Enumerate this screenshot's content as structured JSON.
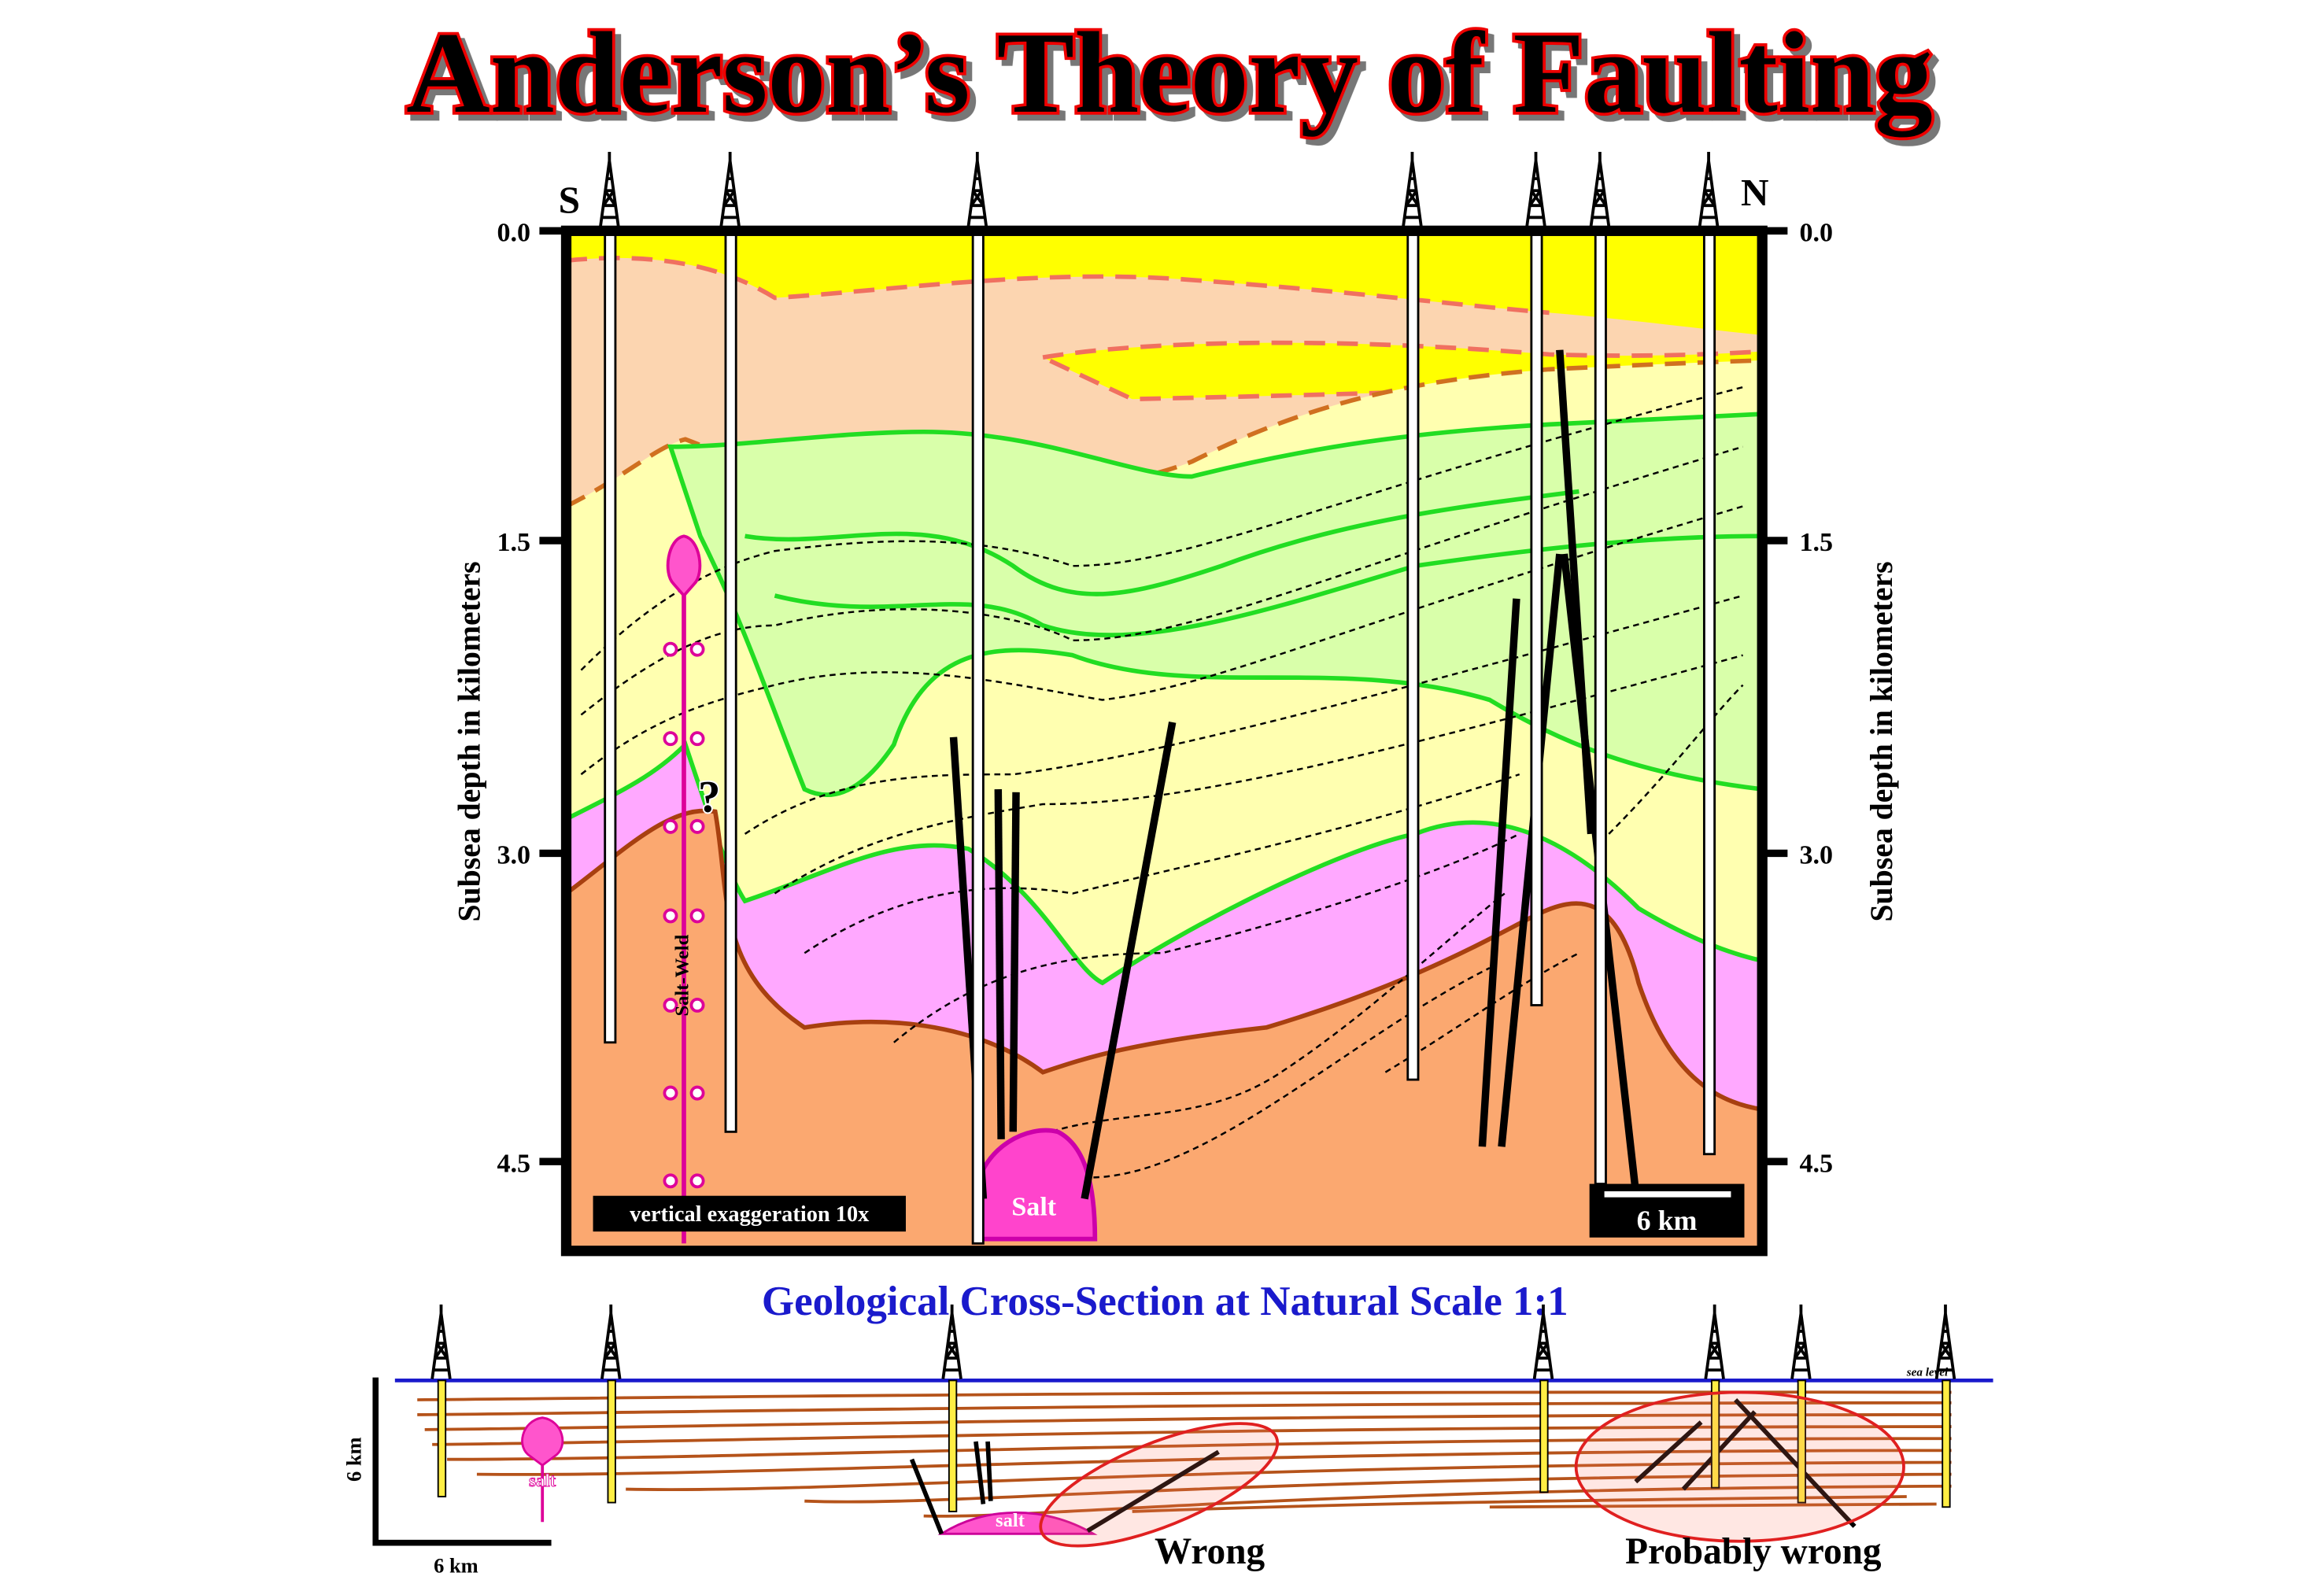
{
  "title": "Anderson’s Theory of Faulting",
  "section": {
    "left_end": "S",
    "right_end": "N",
    "depth_ticks": [
      "0.0",
      "1.5",
      "3.0",
      "4.5"
    ],
    "axis_label": "Subsea depth in kilometers",
    "salt_weld": "Salt-Weld",
    "question": "?",
    "exaggeration": "vertical exaggeration 10x",
    "salt": "Salt",
    "scale": "6 km"
  },
  "natural": {
    "title": "Geological Cross-Section at Natural Scale 1:1",
    "sea_level": "sea level",
    "vertical_scale": "6 km",
    "horizontal_scale": "6 km",
    "salt_diapir": "salt",
    "salt_pillow": "salt",
    "wrong": "Wrong",
    "probably_wrong": "Probably wrong"
  }
}
